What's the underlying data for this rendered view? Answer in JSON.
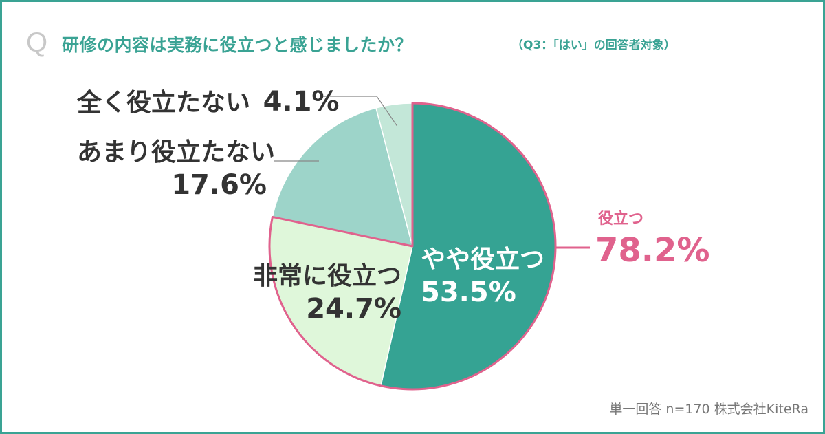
{
  "header": {
    "q_mark": "Q",
    "title": "研修の内容は実務に役立つと感じましたか？",
    "note": "（Q3：「はい」の回答者対象）"
  },
  "chart_data": {
    "type": "pie",
    "title": "研修の内容は実務に役立つと感じましたか？",
    "slices": [
      {
        "label": "やや役立つ",
        "value": 53.5,
        "value_label": "53.5%",
        "color": "#35a393"
      },
      {
        "label": "非常に役立つ",
        "value": 24.7,
        "value_label": "24.7%",
        "color": "#dff7da"
      },
      {
        "label": "あまり役立たない",
        "value": 17.6,
        "value_label": "17.6%",
        "color": "#9dd4c9"
      },
      {
        "label": "全く役立たない",
        "value": 4.1,
        "value_label": "4.1%",
        "color": "#c3e7d8"
      }
    ],
    "highlight": {
      "label": "役立つ",
      "value": 78.2,
      "value_label": "78.2%",
      "color": "#e0628d"
    },
    "start_angle_deg": 0,
    "direction": "clockwise"
  },
  "labels": {
    "slight_helpful_name": "やや役立つ",
    "slight_helpful_value": "53.5%",
    "very_helpful_name": "非常に役立つ",
    "very_helpful_value": "24.7%",
    "not_very_name": "あまり役立たない",
    "not_very_value": "17.6%",
    "not_at_all_name": "全く役立たない",
    "not_at_all_value": "4.1%",
    "helpful_name": "役立つ",
    "helpful_value": "78.2%"
  },
  "footer": {
    "text": "単一回答  n=170  株式会社KiteRa"
  }
}
